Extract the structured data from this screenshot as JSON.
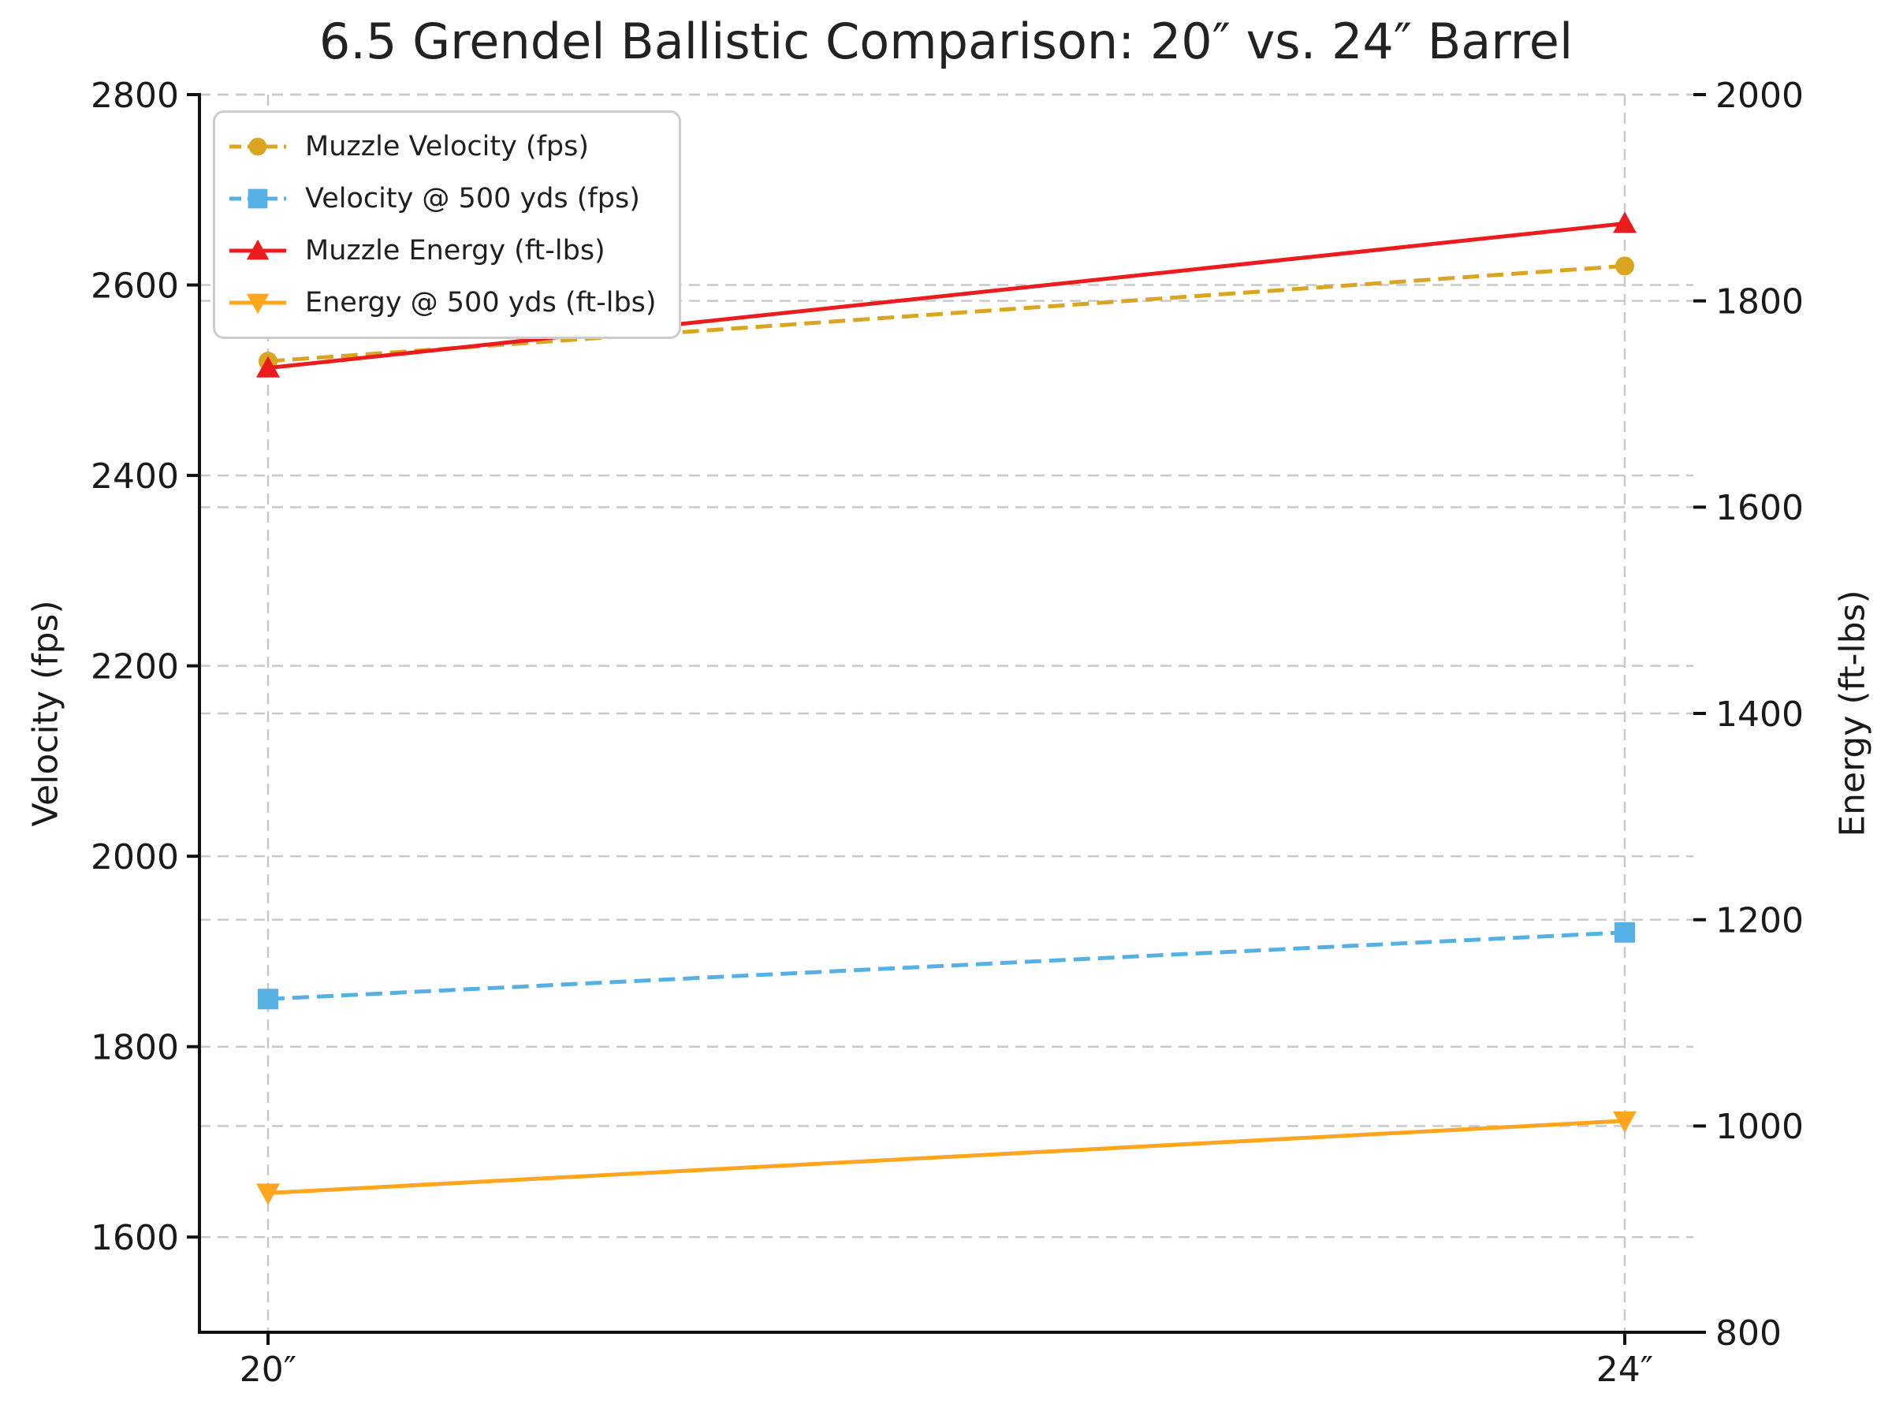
{
  "chart_data": {
    "type": "line",
    "title": "6.5 Grendel Ballistic Comparison: 20″ vs. 24″ Barrel",
    "ylabel_left": "Velocity (fps)",
    "ylabel_right": "Energy (ft-lbs)",
    "xlabel": "",
    "categories": [
      "20″",
      "24″"
    ],
    "y_left": {
      "min": 1500,
      "max": 2800,
      "ticks": [
        1600,
        1800,
        2000,
        2200,
        2400,
        2600,
        2800
      ]
    },
    "y_right": {
      "min": 800,
      "max": 2000,
      "ticks": [
        800,
        1000,
        1200,
        1400,
        1600,
        1800,
        2000
      ]
    },
    "grid": true,
    "legend_position": "upper left",
    "series": [
      {
        "name": "Muzzle Velocity (fps)",
        "axis": "left",
        "values": [
          2520,
          2620
        ],
        "color": "#DAA520",
        "linestyle": "dashed",
        "marker": "circle"
      },
      {
        "name": "Velocity @ 500 yds (fps)",
        "axis": "left",
        "values": [
          1850,
          1920
        ],
        "color": "#55B1E4",
        "linestyle": "dashed",
        "marker": "square"
      },
      {
        "name": "Muzzle Energy (ft-lbs)",
        "axis": "right",
        "values": [
          1735,
          1875
        ],
        "color": "#EC1B1E",
        "linestyle": "solid",
        "marker": "triangle-up"
      },
      {
        "name": "Energy @ 500 yds (ft-lbs)",
        "axis": "right",
        "values": [
          935,
          1005
        ],
        "color": "#FFA51E",
        "linestyle": "solid",
        "marker": "triangle-down"
      }
    ],
    "colors": {
      "grid": "#c9c9c9",
      "spine": "#111111",
      "tick_text": "#1a1a1a",
      "legend_border": "#cccccc",
      "legend_bg": "#ffffff"
    }
  }
}
